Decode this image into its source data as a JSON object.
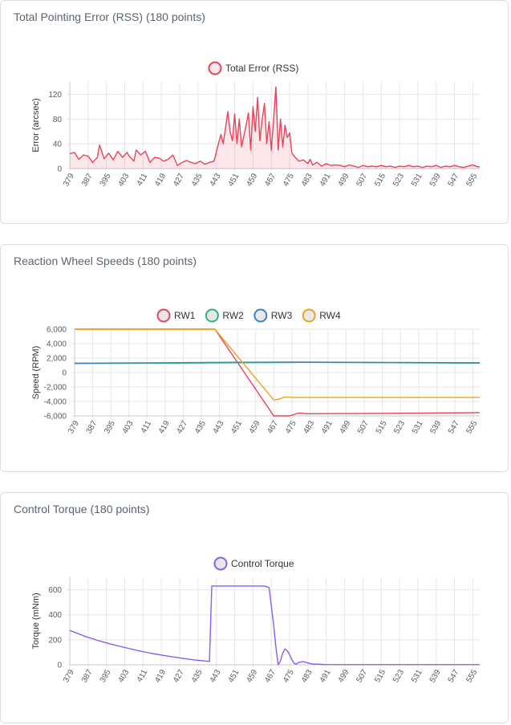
{
  "charts": [
    {
      "title": "Total Pointing Error (RSS) (180 points)"
    },
    {
      "title": "Reaction Wheel Speeds (180 points)"
    },
    {
      "title": "Control Torque (180 points)"
    }
  ],
  "chart_data": [
    {
      "type": "line",
      "title": "Total Pointing Error (RSS) (180 points)",
      "xlabel": "",
      "ylabel": "Error (arcsec)",
      "x_start": 379,
      "x_end": 558,
      "x_ticks": [
        "379",
        "387",
        "395",
        "403",
        "411",
        "419",
        "427",
        "435",
        "443",
        "451",
        "459",
        "467",
        "475",
        "483",
        "491",
        "499",
        "507",
        "515",
        "523",
        "531",
        "539",
        "547",
        "555"
      ],
      "y_ticks": [
        0,
        40,
        80,
        120
      ],
      "ylim": [
        0,
        140
      ],
      "series": [
        {
          "name": "Total Error (RSS)",
          "color": "#e8435a",
          "fill": "rgba(232,67,90,0.12)",
          "points": [
            [
              379,
              24
            ],
            [
              381,
              26
            ],
            [
              383,
              15
            ],
            [
              385,
              22
            ],
            [
              387,
              20
            ],
            [
              389,
              10
            ],
            [
              391,
              18
            ],
            [
              392,
              38
            ],
            [
              394,
              16
            ],
            [
              396,
              25
            ],
            [
              398,
              14
            ],
            [
              400,
              28
            ],
            [
              402,
              18
            ],
            [
              404,
              26
            ],
            [
              405,
              20
            ],
            [
              407,
              12
            ],
            [
              408,
              30
            ],
            [
              410,
              22
            ],
            [
              412,
              28
            ],
            [
              414,
              10
            ],
            [
              416,
              18
            ],
            [
              418,
              17
            ],
            [
              420,
              12
            ],
            [
              422,
              15
            ],
            [
              424,
              22
            ],
            [
              426,
              5
            ],
            [
              428,
              10
            ],
            [
              430,
              13
            ],
            [
              432,
              10
            ],
            [
              434,
              8
            ],
            [
              436,
              12
            ],
            [
              438,
              7
            ],
            [
              440,
              10
            ],
            [
              442,
              12
            ],
            [
              444,
              42
            ],
            [
              445,
              55
            ],
            [
              446,
              40
            ],
            [
              448,
              92
            ],
            [
              449,
              60
            ],
            [
              450,
              45
            ],
            [
              451,
              88
            ],
            [
              452,
              40
            ],
            [
              453,
              80
            ],
            [
              454,
              35
            ],
            [
              456,
              70
            ],
            [
              457,
              90
            ],
            [
              458,
              30
            ],
            [
              459,
              100
            ],
            [
              460,
              60
            ],
            [
              461,
              115
            ],
            [
              462,
              45
            ],
            [
              463,
              80
            ],
            [
              464,
              105
            ],
            [
              465,
              40
            ],
            [
              466,
              76
            ],
            [
              467,
              30
            ],
            [
              468,
              80
            ],
            [
              469,
              132
            ],
            [
              470,
              30
            ],
            [
              471,
              80
            ],
            [
              472,
              35
            ],
            [
              473,
              70
            ],
            [
              474,
              50
            ],
            [
              475,
              58
            ],
            [
              476,
              25
            ],
            [
              477,
              20
            ],
            [
              479,
              12
            ],
            [
              481,
              14
            ],
            [
              483,
              8
            ],
            [
              484,
              15
            ],
            [
              485,
              6
            ],
            [
              487,
              10
            ],
            [
              489,
              4
            ],
            [
              491,
              8
            ],
            [
              493,
              5
            ],
            [
              495,
              6
            ],
            [
              497,
              5
            ],
            [
              499,
              3
            ],
            [
              501,
              6
            ],
            [
              503,
              4
            ],
            [
              505,
              2
            ],
            [
              507,
              5
            ],
            [
              509,
              3
            ],
            [
              511,
              4
            ],
            [
              513,
              3
            ],
            [
              515,
              5
            ],
            [
              517,
              3
            ],
            [
              519,
              4
            ],
            [
              521,
              2
            ],
            [
              523,
              4
            ],
            [
              525,
              3
            ],
            [
              527,
              5
            ],
            [
              529,
              3
            ],
            [
              531,
              4
            ],
            [
              533,
              2
            ],
            [
              535,
              4
            ],
            [
              537,
              3
            ],
            [
              539,
              5
            ],
            [
              541,
              2
            ],
            [
              543,
              4
            ],
            [
              545,
              3
            ],
            [
              547,
              5
            ],
            [
              549,
              3
            ],
            [
              551,
              2
            ],
            [
              553,
              4
            ],
            [
              555,
              6
            ],
            [
              557,
              3
            ],
            [
              558,
              3
            ]
          ]
        }
      ]
    },
    {
      "type": "line",
      "title": "Reaction Wheel Speeds (180 points)",
      "xlabel": "",
      "ylabel": "Speed (RPM)",
      "x_start": 379,
      "x_end": 558,
      "x_ticks": [
        "379",
        "387",
        "395",
        "403",
        "411",
        "419",
        "427",
        "435",
        "443",
        "451",
        "459",
        "467",
        "475",
        "483",
        "491",
        "499",
        "507",
        "515",
        "523",
        "531",
        "539",
        "547",
        "555"
      ],
      "y_ticks": [
        -6000,
        -4000,
        -2000,
        0,
        2000,
        4000,
        6000
      ],
      "y_tick_labels": [
        "-6,000",
        "-4,000",
        "-2,000",
        "0",
        "2,000",
        "4,000",
        "6,000"
      ],
      "ylim": [
        -6000,
        6000
      ],
      "series": [
        {
          "name": "RW1",
          "color": "#e8435a",
          "points": [
            [
              379,
              6000
            ],
            [
              441,
              6000
            ],
            [
              467,
              -6000
            ],
            [
              474,
              -6000
            ],
            [
              478,
              -5600
            ],
            [
              482,
              -5700
            ],
            [
              520,
              -5650
            ],
            [
              558,
              -5550
            ]
          ]
        },
        {
          "name": "RW2",
          "color": "#2bb673",
          "points": [
            [
              379,
              1250
            ],
            [
              420,
              1300
            ],
            [
              450,
              1350
            ],
            [
              480,
              1400
            ],
            [
              520,
              1350
            ],
            [
              558,
              1300
            ]
          ]
        },
        {
          "name": "RW3",
          "color": "#3b82c4",
          "points": [
            [
              379,
              1300
            ],
            [
              420,
              1350
            ],
            [
              450,
              1420
            ],
            [
              480,
              1450
            ],
            [
              520,
              1400
            ],
            [
              558,
              1350
            ]
          ]
        },
        {
          "name": "RW4",
          "color": "#f0a020",
          "points": [
            [
              379,
              6000
            ],
            [
              441,
              6000
            ],
            [
              467,
              -3800
            ],
            [
              469,
              -3700
            ],
            [
              472,
              -3400
            ],
            [
              476,
              -3450
            ],
            [
              520,
              -3450
            ],
            [
              558,
              -3450
            ]
          ]
        }
      ]
    },
    {
      "type": "line",
      "title": "Control Torque (180 points)",
      "xlabel": "",
      "ylabel": "Torque (mNm)",
      "x_start": 379,
      "x_end": 558,
      "x_ticks": [
        "379",
        "387",
        "395",
        "403",
        "411",
        "419",
        "427",
        "435",
        "443",
        "451",
        "459",
        "467",
        "475",
        "483",
        "491",
        "499",
        "507",
        "515",
        "523",
        "531",
        "539",
        "547",
        "555"
      ],
      "y_ticks": [
        0,
        200,
        400,
        600
      ],
      "ylim": [
        0,
        700
      ],
      "series": [
        {
          "name": "Control Torque",
          "color": "#8b5cf6",
          "points": [
            [
              379,
              275
            ],
            [
              385,
              232
            ],
            [
              391,
              196
            ],
            [
              397,
              165
            ],
            [
              403,
              138
            ],
            [
              409,
              113
            ],
            [
              415,
              90
            ],
            [
              421,
              72
            ],
            [
              427,
              55
            ],
            [
              433,
              40
            ],
            [
              438,
              30
            ],
            [
              440,
              27
            ],
            [
              441,
              630
            ],
            [
              446,
              630
            ],
            [
              456,
              630
            ],
            [
              464,
              630
            ],
            [
              466,
              618
            ],
            [
              468,
              320
            ],
            [
              469,
              140
            ],
            [
              470,
              0
            ],
            [
              471,
              30
            ],
            [
              472,
              95
            ],
            [
              473,
              128
            ],
            [
              474,
              112
            ],
            [
              475,
              80
            ],
            [
              476,
              40
            ],
            [
              477,
              10
            ],
            [
              478,
              5
            ],
            [
              479,
              20
            ],
            [
              481,
              25
            ],
            [
              483,
              15
            ],
            [
              485,
              5
            ],
            [
              487,
              6
            ],
            [
              489,
              3
            ],
            [
              491,
              2
            ],
            [
              495,
              1
            ],
            [
              558,
              1
            ]
          ]
        }
      ]
    }
  ]
}
